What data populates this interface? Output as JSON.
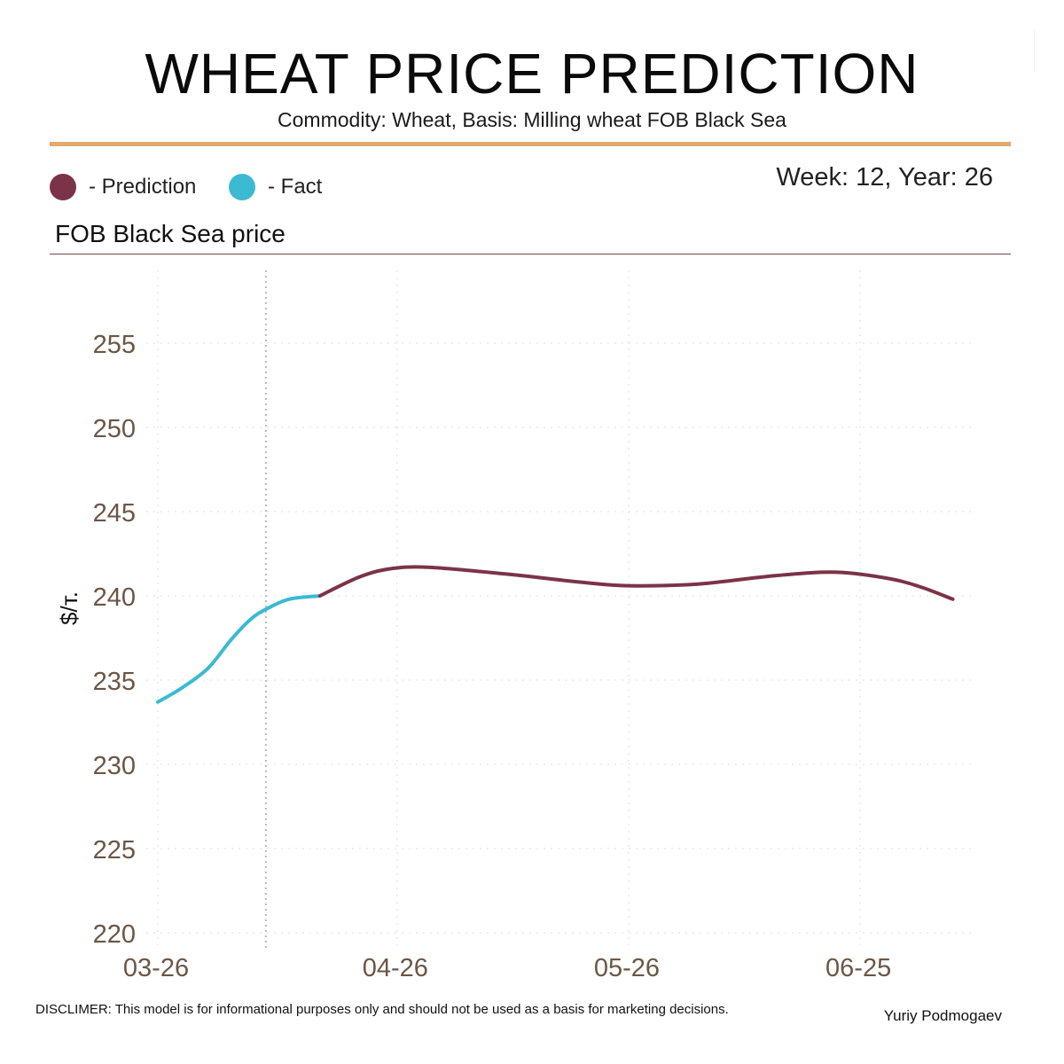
{
  "header": {
    "title": "WHEAT PRICE PREDICTION",
    "subtitle": "Commodity: Wheat, Basis: Milling wheat FOB Black Sea"
  },
  "legend": [
    {
      "label": "- Prediction",
      "color": "#7B3347"
    },
    {
      "label": "- Fact",
      "color": "#3BBAD2"
    }
  ],
  "week_label": "Week: 12, Year: 26",
  "panel_title": "FOB Black Sea price",
  "footer": {
    "disclaimer": "DISCLIMER:  This model is for informational purposes only and should not be used as a basis for marketing decisions.",
    "author": "Yuriy Podmogaev"
  },
  "colors": {
    "accent_rule": "#E3A96E",
    "axis_text": "#6B5645",
    "grid": "#e4e4e4"
  },
  "chart_data": {
    "type": "line",
    "title": "",
    "xlabel": "",
    "ylabel": "$/т.",
    "x_ticks": [
      "03-26",
      "04-26",
      "05-26",
      "06-25"
    ],
    "x_tick_days": [
      0,
      31,
      61,
      91
    ],
    "xlim_days": [
      0,
      105
    ],
    "ylim": [
      220,
      258
    ],
    "y_ticks": [
      220,
      225,
      230,
      235,
      240,
      245,
      250,
      255
    ],
    "grid": true,
    "vline_day": 14,
    "series": [
      {
        "name": "- Fact",
        "color": "#3BBAD2",
        "points": [
          [
            0,
            233.7
          ],
          [
            3,
            234.5
          ],
          [
            6.5,
            235.7
          ],
          [
            9.5,
            237.4
          ],
          [
            12,
            238.6
          ],
          [
            14,
            239.2
          ],
          [
            17,
            239.8
          ],
          [
            21,
            240.0
          ]
        ]
      },
      {
        "name": "- Prediction",
        "color": "#7B3347",
        "points": [
          [
            21,
            240.0
          ],
          [
            26,
            241.1
          ],
          [
            30,
            241.6
          ],
          [
            35,
            241.7
          ],
          [
            45,
            241.3
          ],
          [
            55,
            240.8
          ],
          [
            61,
            240.6
          ],
          [
            70,
            240.7
          ],
          [
            80,
            241.2
          ],
          [
            88,
            241.4
          ],
          [
            95,
            241.0
          ],
          [
            99,
            240.5
          ],
          [
            103,
            239.8
          ]
        ]
      }
    ]
  }
}
